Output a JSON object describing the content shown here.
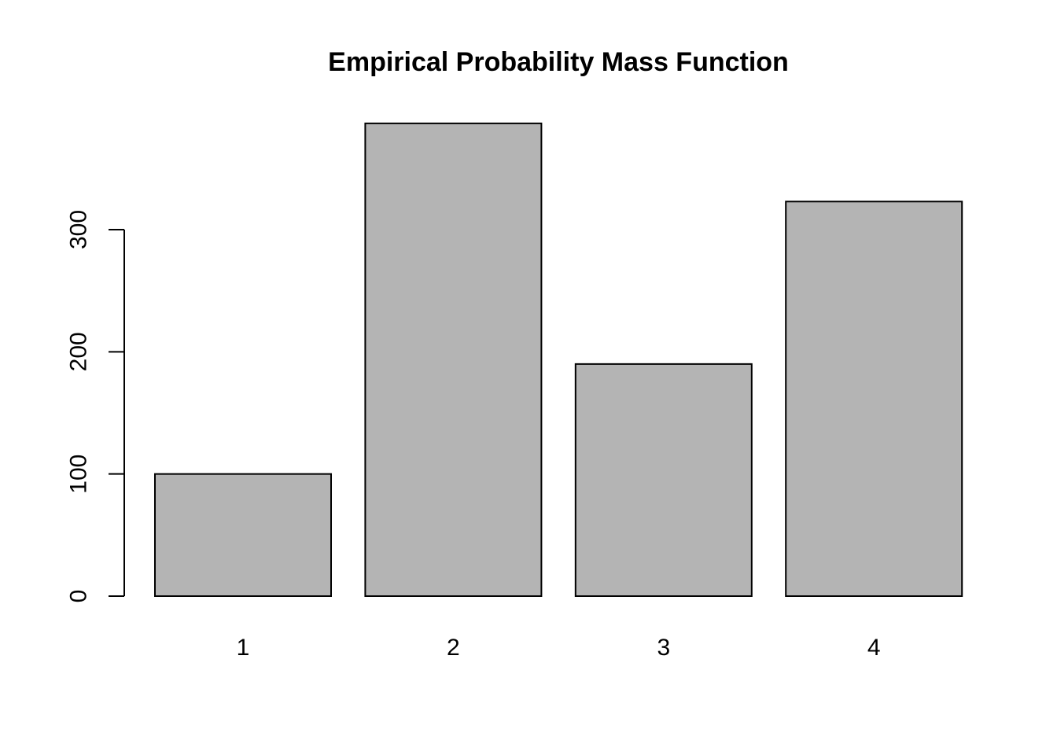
{
  "chart_data": {
    "type": "bar",
    "title": "Empirical Probability Mass Function",
    "xlabel": "",
    "ylabel": "",
    "categories": [
      "1",
      "2",
      "3",
      "4"
    ],
    "values": [
      100,
      387,
      190,
      323
    ],
    "yticks": [
      0,
      100,
      200,
      300
    ],
    "ylim": [
      0,
      390
    ],
    "grid": false,
    "legend": null,
    "colors": {
      "bar_fill": "#b4b4b4",
      "bar_border": "#000000",
      "axis": "#000000",
      "text": "#000000",
      "background": "#ffffff"
    }
  }
}
